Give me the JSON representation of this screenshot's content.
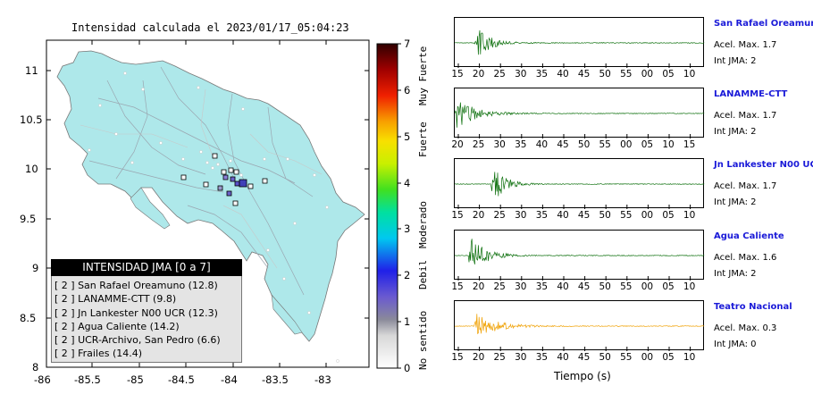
{
  "map": {
    "title": "Intensidad calculada el 2023/01/17_05:04:23",
    "y_ticks": [
      "11",
      "10.5",
      "10",
      "9.5",
      "9",
      "8.5",
      "8"
    ],
    "x_ticks": [
      "-86",
      "-85.5",
      "-85",
      "-84.5",
      "-84",
      "-83.5",
      "-83"
    ],
    "land_color": "#aee8ea",
    "station_color": "#5a50c8"
  },
  "legend": {
    "title": "INTENSIDAD JMA [0 a 7]",
    "items": [
      "[ 2 ]  San Rafael Oreamuno (12.8)",
      "[ 2 ]  LANAMME-CTT (9.8)",
      "[ 2 ]  Jn Lankester N00 UCR (12.3)",
      "[ 2 ]  Agua Caliente (14.2)",
      "[ 2 ]  UCR-Archivo, San Pedro (6.6)",
      "[ 2 ]  Frailes (14.4)"
    ]
  },
  "scale": {
    "ticks": [
      "7",
      "6",
      "5",
      "4",
      "3",
      "2",
      "1",
      "0"
    ],
    "labels": [
      "Muy Fuerte",
      "Fuerte",
      "Moderado",
      "Debil",
      "No sentido"
    ]
  },
  "traces": [
    {
      "name": "San Rafael Oreamuno",
      "acel": "Acel. Max. 1.7",
      "int": "Int JMA: 2",
      "color": "#0a6e0a",
      "ticks": [
        "15",
        "20",
        "25",
        "30",
        "35",
        "40",
        "45",
        "50",
        "55",
        "00",
        "05",
        "10"
      ],
      "tick_start": 15
    },
    {
      "name": "LANAMME-CTT",
      "acel": "Acel. Max. 1.7",
      "int": "Int JMA: 2",
      "color": "#0a6e0a",
      "ticks": [
        "20",
        "25",
        "30",
        "35",
        "40",
        "45",
        "50",
        "55",
        "00",
        "05",
        "10",
        "15"
      ],
      "tick_start": 20
    },
    {
      "name": "Jn Lankester N00 UCR",
      "acel": "Acel. Max. 1.7",
      "int": "Int JMA: 2",
      "color": "#0a6e0a",
      "ticks": [
        "15",
        "20",
        "25",
        "30",
        "35",
        "40",
        "45",
        "50",
        "55",
        "00",
        "05",
        "10"
      ],
      "tick_start": 15
    },
    {
      "name": "Agua Caliente",
      "acel": "Acel. Max. 1.6",
      "int": "Int JMA: 2",
      "color": "#0a6e0a",
      "ticks": [
        "15",
        "20",
        "25",
        "30",
        "35",
        "40",
        "45",
        "50",
        "55",
        "00",
        "05",
        "10"
      ],
      "tick_start": 15
    },
    {
      "name": "Teatro Nacional",
      "acel": "Acel. Max. 0.3",
      "int": "Int JMA: 0",
      "color": "#f0a000",
      "ticks": [
        "15",
        "20",
        "25",
        "30",
        "35",
        "40",
        "45",
        "50",
        "55",
        "00",
        "05",
        "10"
      ],
      "tick_start": 15
    }
  ],
  "time_axis_label": "Tiempo (s)"
}
